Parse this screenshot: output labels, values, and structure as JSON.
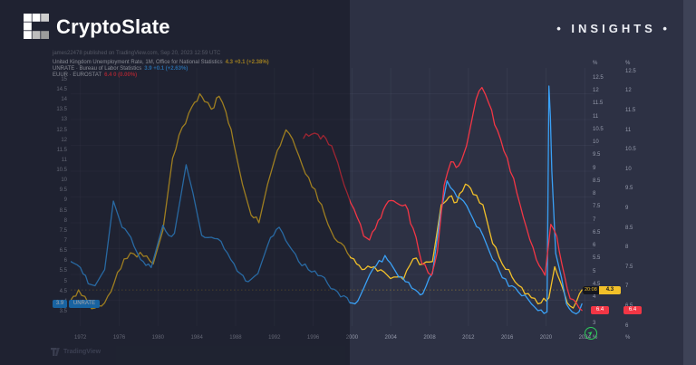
{
  "header": {
    "brand": "CryptoSlate",
    "insights": "• INSIGHTS •"
  },
  "attribution": "james22478 published on TradingView.com, Sep 20, 2023 12:59 UTC",
  "legend": [
    {
      "label": "United Kingdom Unemployment Rate, 1M, Office for National Statistics",
      "value": "4.3 +0.1 (+2.38%)",
      "color": "#f2c029"
    },
    {
      "label": "UNRATE · Bureau of Labor Statistics",
      "value": "3.9 +0.1 (+2.63%)",
      "color": "#3aa0f5"
    },
    {
      "label": "EUUR · EUROSTAT",
      "value": "6.4 0 (0.00%)",
      "color": "#f23645"
    }
  ],
  "price_labels": {
    "us": {
      "value": "3.9",
      "tag": "UNRATE",
      "color": "#2196f3",
      "scale": "left"
    },
    "uk": {
      "value": "4.3",
      "countdown": "20:08",
      "color": "#f2c029",
      "scale": "right_inner"
    },
    "eu": {
      "value": "6.4",
      "color": "#f23645",
      "scale": "right_outer"
    }
  },
  "footer": {
    "platform": "TradingView"
  },
  "colors": {
    "background_left": "#1d202c",
    "background_right": "#2d3144",
    "accent_green": "#2ecc5b",
    "axis_text": "#959aab"
  },
  "chart_data": {
    "type": "line",
    "x_domain": [
      1971,
      2025
    ],
    "x_ticks": [
      1972,
      1976,
      1980,
      1984,
      1988,
      1992,
      1996,
      2000,
      2004,
      2008,
      2012,
      2016,
      2020,
      2024
    ],
    "grid": true,
    "legend_position": "top-left",
    "scales": {
      "left": {
        "unit": "%",
        "min": 2.8,
        "max": 15.6,
        "unit_top": false,
        "unit_bottom": false,
        "ticks": [
          15,
          14.5,
          14,
          13.5,
          13,
          12.5,
          12,
          11.5,
          11,
          10.5,
          10,
          9.5,
          9,
          8.5,
          8,
          7.5,
          7,
          6.5,
          6,
          5.5,
          5,
          4.5,
          4,
          3.5
        ]
      },
      "right_inner": {
        "unit": "%",
        "min": 2.9,
        "max": 12.9,
        "unit_top": true,
        "unit_bottom": true,
        "ticks": [
          12.5,
          12,
          11.5,
          11,
          10.5,
          10,
          9.5,
          9,
          8.5,
          8,
          7.5,
          7,
          6.5,
          6,
          5.5,
          5,
          4.5,
          4,
          3.5,
          3
        ]
      },
      "right_outer": {
        "unit": "%",
        "min": 6.0,
        "max": 12.6,
        "unit_top": true,
        "unit_bottom": true,
        "ticks": [
          12.5,
          12,
          11.5,
          11,
          10.5,
          10,
          9.5,
          9,
          8.5,
          8,
          7.5,
          7,
          6.5,
          6
        ]
      }
    },
    "price_line": {
      "series": "United Kingdom Unemployment Rate",
      "value": 4.3,
      "color": "#f2c029"
    },
    "series": [
      {
        "name": "United Kingdom Unemployment Rate",
        "color": "#f2c029",
        "scale": "right_inner",
        "points": [
          [
            1971,
            3.9
          ],
          [
            1971.8,
            4.3
          ],
          [
            1972.8,
            3.8
          ],
          [
            1973.5,
            3.6
          ],
          [
            1974.5,
            3.8
          ],
          [
            1975.5,
            4.6
          ],
          [
            1976.5,
            5.5
          ],
          [
            1977.5,
            5.7
          ],
          [
            1978.5,
            5.6
          ],
          [
            1979.5,
            5.3
          ],
          [
            1980.5,
            6.6
          ],
          [
            1981.5,
            9.4
          ],
          [
            1982.5,
            10.6
          ],
          [
            1983.5,
            11.4
          ],
          [
            1984.3,
            11.9
          ],
          [
            1984.8,
            11.6
          ],
          [
            1985.5,
            11.3
          ],
          [
            1986.3,
            11.8
          ],
          [
            1987,
            11.2
          ],
          [
            1987.8,
            10.0
          ],
          [
            1988.7,
            8.4
          ],
          [
            1989.6,
            7.2
          ],
          [
            1990.4,
            6.9
          ],
          [
            1991.3,
            8.4
          ],
          [
            1992.3,
            9.7
          ],
          [
            1993.2,
            10.5
          ],
          [
            1994.2,
            9.8
          ],
          [
            1995.2,
            8.8
          ],
          [
            1996.2,
            8.2
          ],
          [
            1997.2,
            7.2
          ],
          [
            1998.2,
            6.3
          ],
          [
            1999.2,
            6.0
          ],
          [
            2000.2,
            5.5
          ],
          [
            2001.3,
            5.1
          ],
          [
            2002.3,
            5.2
          ],
          [
            2003.3,
            5.0
          ],
          [
            2004.3,
            4.8
          ],
          [
            2005.3,
            4.7
          ],
          [
            2006.3,
            5.5
          ],
          [
            2007.3,
            5.3
          ],
          [
            2008.3,
            5.4
          ],
          [
            2009.2,
            7.6
          ],
          [
            2010,
            7.9
          ],
          [
            2010.8,
            7.7
          ],
          [
            2011.7,
            8.4
          ],
          [
            2012.5,
            8.0
          ],
          [
            2013.5,
            7.6
          ],
          [
            2014.5,
            6.1
          ],
          [
            2015.5,
            5.3
          ],
          [
            2016.5,
            4.8
          ],
          [
            2017.5,
            4.4
          ],
          [
            2018.5,
            4.0
          ],
          [
            2019.5,
            3.8
          ],
          [
            2020.3,
            4.0
          ],
          [
            2020.9,
            5.2
          ],
          [
            2021.5,
            4.6
          ],
          [
            2022.2,
            3.8
          ],
          [
            2022.8,
            3.6
          ],
          [
            2023.2,
            3.9
          ],
          [
            2023.7,
            4.3
          ]
        ]
      },
      {
        "name": "UNRATE",
        "color": "#3aa0f5",
        "scale": "left",
        "points": [
          [
            1971,
            6.0
          ],
          [
            1972,
            5.7
          ],
          [
            1972.8,
            4.9
          ],
          [
            1973.5,
            4.8
          ],
          [
            1974.5,
            5.6
          ],
          [
            1975.4,
            9.0
          ],
          [
            1976.3,
            7.7
          ],
          [
            1977.2,
            7.2
          ],
          [
            1978.2,
            6.1
          ],
          [
            1979.3,
            5.7
          ],
          [
            1980.5,
            7.8
          ],
          [
            1981.1,
            7.3
          ],
          [
            1981.7,
            7.4
          ],
          [
            1982.9,
            10.8
          ],
          [
            1983.6,
            9.4
          ],
          [
            1984.5,
            7.3
          ],
          [
            1985.5,
            7.2
          ],
          [
            1986.5,
            7.0
          ],
          [
            1987.5,
            6.1
          ],
          [
            1988.5,
            5.4
          ],
          [
            1989.3,
            5.0
          ],
          [
            1990.3,
            5.4
          ],
          [
            1991.3,
            6.8
          ],
          [
            1992.5,
            7.7
          ],
          [
            1993.5,
            6.8
          ],
          [
            1994.5,
            6.0
          ],
          [
            1995.5,
            5.6
          ],
          [
            1996.5,
            5.3
          ],
          [
            1997.5,
            4.9
          ],
          [
            1998.5,
            4.5
          ],
          [
            1999.5,
            4.2
          ],
          [
            2000.3,
            3.9
          ],
          [
            2001.5,
            5.0
          ],
          [
            2002.5,
            5.8
          ],
          [
            2003.4,
            6.3
          ],
          [
            2004.5,
            5.5
          ],
          [
            2005.5,
            5.0
          ],
          [
            2006.5,
            4.6
          ],
          [
            2007.3,
            4.4
          ],
          [
            2008.3,
            5.4
          ],
          [
            2009.1,
            8.3
          ],
          [
            2009.8,
            10.0
          ],
          [
            2010.5,
            9.5
          ],
          [
            2011.5,
            9.0
          ],
          [
            2012.5,
            8.1
          ],
          [
            2013.5,
            7.3
          ],
          [
            2014.5,
            6.1
          ],
          [
            2015.5,
            5.2
          ],
          [
            2016.5,
            4.8
          ],
          [
            2017.5,
            4.3
          ],
          [
            2018.5,
            3.9
          ],
          [
            2019.5,
            3.6
          ],
          [
            2020.1,
            3.5
          ],
          [
            2020.3,
            14.7
          ],
          [
            2020.45,
            13.2
          ],
          [
            2020.6,
            10.5
          ],
          [
            2021,
            6.4
          ],
          [
            2021.6,
            5.2
          ],
          [
            2022.1,
            3.9
          ],
          [
            2022.7,
            3.5
          ],
          [
            2023.1,
            3.4
          ],
          [
            2023.4,
            3.5
          ],
          [
            2023.7,
            3.9
          ]
        ]
      },
      {
        "name": "EUUR",
        "color": "#f23645",
        "scale": "right_outer",
        "points": [
          [
            1995,
            10.8
          ],
          [
            1995.8,
            10.9
          ],
          [
            1996.5,
            10.9
          ],
          [
            1997.3,
            10.8
          ],
          [
            1998.2,
            10.4
          ],
          [
            1999.2,
            9.6
          ],
          [
            2000.2,
            9.0
          ],
          [
            2001.2,
            8.3
          ],
          [
            2001.8,
            8.2
          ],
          [
            2002.7,
            8.7
          ],
          [
            2003.5,
            9.1
          ],
          [
            2004.3,
            9.2
          ],
          [
            2004.9,
            9.1
          ],
          [
            2005.5,
            9.1
          ],
          [
            2006.3,
            8.5
          ],
          [
            2007.2,
            7.6
          ],
          [
            2008.2,
            7.3
          ],
          [
            2008.8,
            7.9
          ],
          [
            2009.5,
            9.6
          ],
          [
            2010.2,
            10.2
          ],
          [
            2011,
            10.1
          ],
          [
            2011.8,
            10.6
          ],
          [
            2012.8,
            11.8
          ],
          [
            2013.4,
            12.1
          ],
          [
            2014.1,
            11.7
          ],
          [
            2015,
            11.0
          ],
          [
            2016,
            10.3
          ],
          [
            2017,
            9.4
          ],
          [
            2018,
            8.5
          ],
          [
            2019,
            7.7
          ],
          [
            2019.9,
            7.3
          ],
          [
            2020.5,
            8.6
          ],
          [
            2021.1,
            8.3
          ],
          [
            2021.9,
            7.3
          ],
          [
            2022.5,
            6.7
          ],
          [
            2023.1,
            6.6
          ],
          [
            2023.7,
            6.4
          ]
        ]
      }
    ]
  }
}
